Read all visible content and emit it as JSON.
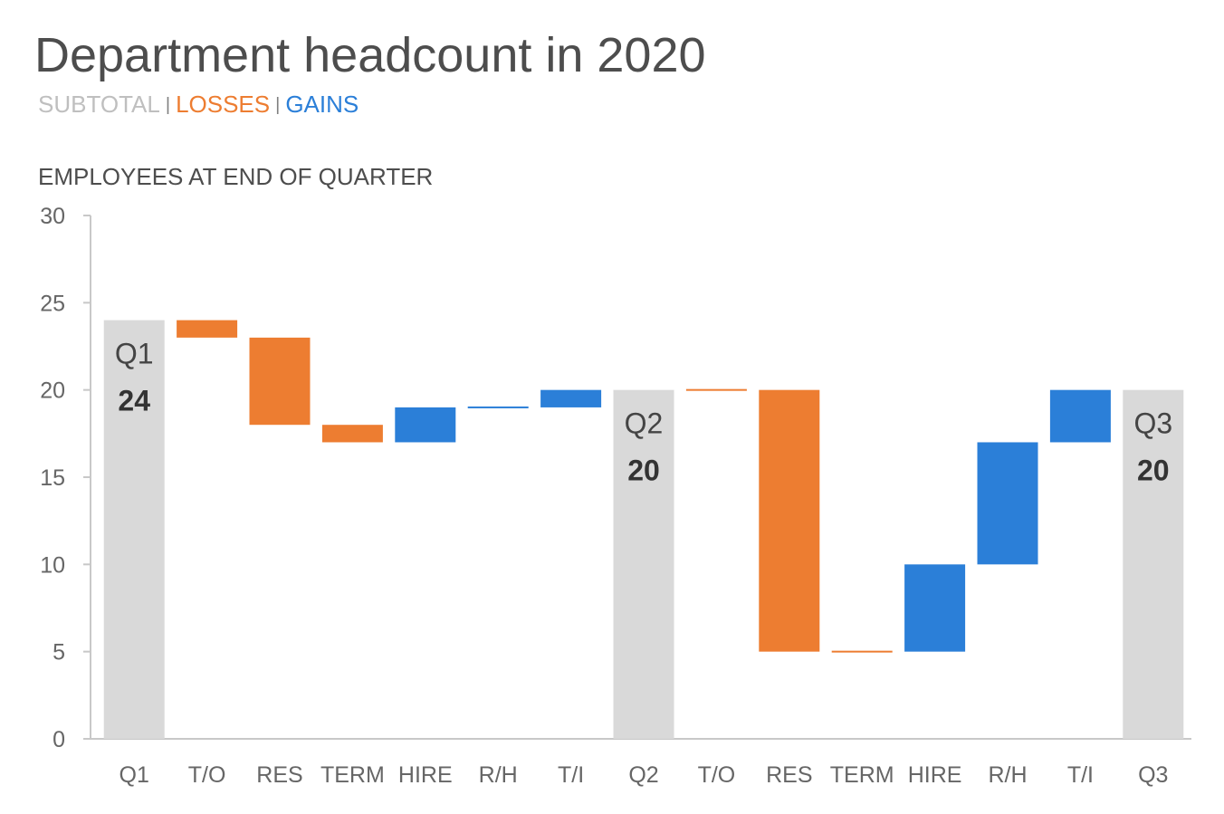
{
  "chart_data": {
    "type": "bar",
    "title": "Department headcount in 2020",
    "legend": [
      {
        "label": "SUBTOTAL",
        "color": "#d9d9d9"
      },
      {
        "label": "LOSSES",
        "color": "#ed7d31"
      },
      {
        "label": "GAINS",
        "color": "#2b7fd8"
      }
    ],
    "legend_separator": "|",
    "ylabel": "EMPLOYEES AT END OF QUARTER",
    "xlabel": "",
    "ylim": [
      0,
      30
    ],
    "yticks": [
      0,
      5,
      10,
      15,
      20,
      25,
      30
    ],
    "grid": false,
    "categories": [
      "Q1",
      "T/O",
      "RES",
      "TERM",
      "HIRE",
      "R/H",
      "T/I",
      "Q2",
      "T/O",
      "RES",
      "TERM",
      "HIRE",
      "R/H",
      "T/I",
      "Q3"
    ],
    "bars": [
      {
        "category": "Q1",
        "kind": "subtotal",
        "start": 0,
        "end": 24,
        "label_name": "Q1",
        "label_value": "24"
      },
      {
        "category": "T/O",
        "kind": "loss",
        "start": 24,
        "end": 23
      },
      {
        "category": "RES",
        "kind": "loss",
        "start": 23,
        "end": 18
      },
      {
        "category": "TERM",
        "kind": "loss",
        "start": 18,
        "end": 17
      },
      {
        "category": "HIRE",
        "kind": "gain",
        "start": 17,
        "end": 19
      },
      {
        "category": "R/H",
        "kind": "gain",
        "start": 19,
        "end": 19
      },
      {
        "category": "T/I",
        "kind": "gain",
        "start": 19,
        "end": 20
      },
      {
        "category": "Q2",
        "kind": "subtotal",
        "start": 0,
        "end": 20,
        "label_name": "Q2",
        "label_value": "20"
      },
      {
        "category": "T/O",
        "kind": "loss",
        "start": 20,
        "end": 20
      },
      {
        "category": "RES",
        "kind": "loss",
        "start": 20,
        "end": 5
      },
      {
        "category": "TERM",
        "kind": "loss",
        "start": 5,
        "end": 5
      },
      {
        "category": "HIRE",
        "kind": "gain",
        "start": 5,
        "end": 10
      },
      {
        "category": "R/H",
        "kind": "gain",
        "start": 10,
        "end": 17
      },
      {
        "category": "T/I",
        "kind": "gain",
        "start": 17,
        "end": 20
      },
      {
        "category": "Q3",
        "kind": "subtotal",
        "start": 0,
        "end": 20,
        "label_name": "Q3",
        "label_value": "20"
      }
    ],
    "colors": {
      "subtotal": "#d9d9d9",
      "loss": "#ed7d31",
      "gain": "#2b7fd8",
      "axis": "#c8c8c8"
    }
  }
}
